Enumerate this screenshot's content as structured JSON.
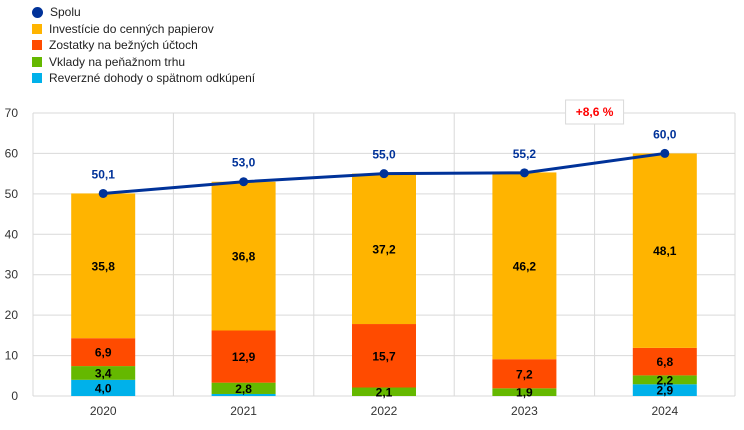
{
  "chart_data": {
    "type": "bar",
    "stacked": true,
    "title": "",
    "xlabel": "",
    "ylabel": "",
    "ylim": [
      0,
      70
    ],
    "yticks": [
      0,
      10,
      20,
      30,
      40,
      50,
      60,
      70
    ],
    "grid": true,
    "legend_position": "top-left",
    "categories": [
      "2020",
      "2021",
      "2022",
      "2023",
      "2024"
    ],
    "series": [
      {
        "name": "Reverzné dohody o spätnom odkúpení",
        "color": "#00B1EA",
        "values": [
          4.0,
          0.5,
          0,
          0,
          2.9
        ],
        "labels": [
          "4,0",
          "",
          "",
          "",
          "2,9"
        ]
      },
      {
        "name": "Vklady na peňažnom trhu",
        "color": "#65B800",
        "values": [
          3.4,
          2.8,
          2.1,
          1.9,
          2.2
        ],
        "labels": [
          "3,4",
          "2,8",
          "2,1",
          "1,9",
          "2,2"
        ]
      },
      {
        "name": "Zostatky na bežných účtoch",
        "color": "#FF4B00",
        "values": [
          6.9,
          12.9,
          15.7,
          7.2,
          6.8
        ],
        "labels": [
          "6,9",
          "12,9",
          "15,7",
          "7,2",
          "6,8"
        ]
      },
      {
        "name": "Investície do cenných papierov",
        "color": "#FFB400",
        "values": [
          35.8,
          36.8,
          37.2,
          46.2,
          48.1
        ],
        "labels": [
          "35,8",
          "36,8",
          "37,2",
          "46,2",
          "48,1"
        ]
      }
    ],
    "line": {
      "name": "Spolu",
      "color": "#003299",
      "values": [
        50.1,
        53.0,
        55.0,
        55.2,
        60.0
      ],
      "labels": [
        "50,1",
        "53,0",
        "55,0",
        "55,2",
        "60,0"
      ]
    },
    "annotation": {
      "text": "+8,6 %",
      "color": "#FF0000"
    }
  },
  "legend": [
    "Spolu",
    "Investície do cenných papierov",
    "Zostatky na bežných účtoch",
    "Vklady na peňažnom trhu",
    "Reverzné dohody o spätnom odkúpení"
  ]
}
